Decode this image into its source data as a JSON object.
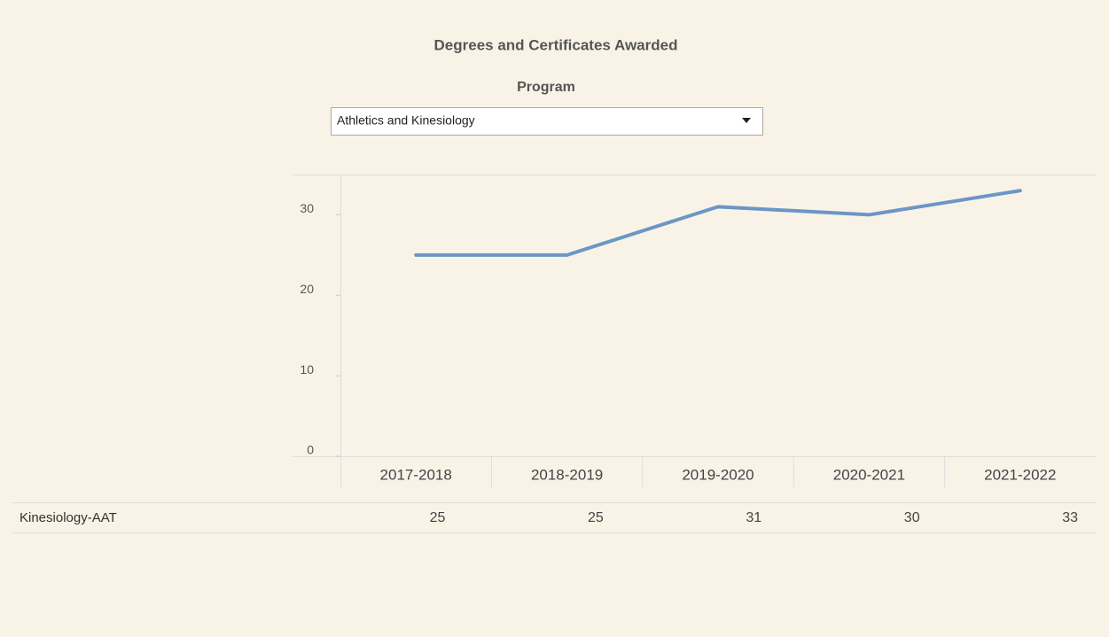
{
  "chart_data": {
    "type": "line",
    "title": "Degrees and Certificates Awarded",
    "filter_label": "Program",
    "filter_value": "Athletics and Kinesiology",
    "categories": [
      "2017-2018",
      "2018-2019",
      "2019-2020",
      "2020-2021",
      "2021-2022"
    ],
    "series": [
      {
        "name": "Kinesiology-AAT",
        "color": "#6b96c6",
        "values": [
          25,
          25,
          31,
          30,
          33
        ]
      }
    ],
    "ylim": [
      0,
      35
    ],
    "yticks": [
      0,
      10,
      20,
      30
    ]
  }
}
